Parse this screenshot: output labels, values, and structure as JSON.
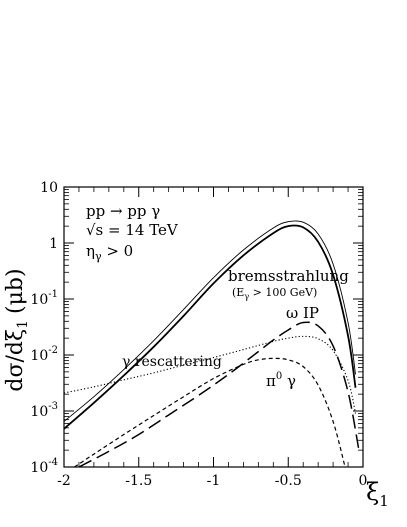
{
  "chart_data": {
    "type": "line",
    "xlabel": "ξ",
    "xlabel_sub": "1",
    "ylabel": "dσ/dξ",
    "ylabel_sub": "1",
    "ylabel_unit": "(μb)",
    "xlim": [
      -2,
      0
    ],
    "ylim": [
      0.0001,
      10
    ],
    "yscale": "log",
    "grid": false,
    "x_ticks": [
      {
        "value": -2,
        "label": "-2"
      },
      {
        "value": -1.5,
        "label": "-1.5"
      },
      {
        "value": -1,
        "label": "-1"
      },
      {
        "value": -0.5,
        "label": "-0.5"
      },
      {
        "value": 0,
        "label": "0"
      }
    ],
    "y_ticks": [
      {
        "value": 0.0001,
        "base": "10",
        "exp": "-4"
      },
      {
        "value": 0.001,
        "base": "10",
        "exp": "-3"
      },
      {
        "value": 0.01,
        "base": "10",
        "exp": "-2"
      },
      {
        "value": 0.1,
        "base": "10",
        "exp": "-1"
      },
      {
        "value": 1,
        "base": "1",
        "exp": ""
      },
      {
        "value": 10,
        "base": "10",
        "exp": ""
      }
    ],
    "process_text": {
      "line1": "pp → pp γ",
      "line2": "√s = 14 TeV",
      "line3_main": "η",
      "line3_sub": "γ",
      "line3_rest": " > 0"
    },
    "series": [
      {
        "style": "solid-thin",
        "x": [
          -2.0,
          -1.8,
          -1.6,
          -1.4,
          -1.2,
          -1.0,
          -0.8,
          -0.6,
          -0.5,
          -0.4,
          -0.3,
          -0.2,
          -0.1,
          -0.05
        ],
        "y": [
          0.00065,
          0.0018,
          0.0055,
          0.018,
          0.065,
          0.24,
          0.75,
          1.85,
          2.4,
          2.35,
          1.45,
          0.42,
          0.038,
          0.0045
        ]
      },
      {
        "style": "solid-thick",
        "x": [
          -2.0,
          -1.8,
          -1.6,
          -1.4,
          -1.2,
          -1.0,
          -0.8,
          -0.6,
          -0.5,
          -0.4,
          -0.3,
          -0.2,
          -0.1,
          -0.05
        ],
        "y": [
          0.00048,
          0.0014,
          0.0043,
          0.014,
          0.05,
          0.19,
          0.6,
          1.5,
          2.0,
          1.9,
          1.05,
          0.27,
          0.022,
          0.0026
        ]
      },
      {
        "style": "dotted",
        "x": [
          -2.0,
          -1.8,
          -1.6,
          -1.4,
          -1.2,
          -1.0,
          -0.8,
          -0.6,
          -0.5,
          -0.4,
          -0.3,
          -0.2,
          -0.1,
          -0.05
        ],
        "y": [
          0.0021,
          0.0027,
          0.0036,
          0.0048,
          0.0066,
          0.009,
          0.0125,
          0.0175,
          0.02,
          0.0215,
          0.0195,
          0.012,
          0.0035,
          0.0009
        ]
      },
      {
        "style": "long-dashed",
        "x": [
          -1.9,
          -1.7,
          -1.5,
          -1.3,
          -1.1,
          -0.9,
          -0.7,
          -0.6,
          -0.5,
          -0.4,
          -0.3,
          -0.2,
          -0.1,
          -0.03
        ],
        "y": [
          0.0001,
          0.00019,
          0.00038,
          0.00085,
          0.0019,
          0.0045,
          0.0115,
          0.0185,
          0.028,
          0.038,
          0.033,
          0.0145,
          0.0022,
          0.00022
        ]
      },
      {
        "style": "short-dashed",
        "x": [
          -1.93,
          -1.8,
          -1.6,
          -1.4,
          -1.2,
          -1.0,
          -0.8,
          -0.7,
          -0.6,
          -0.5,
          -0.4,
          -0.3,
          -0.2,
          -0.12
        ],
        "y": [
          0.0001,
          0.00017,
          0.00038,
          0.00083,
          0.0018,
          0.0038,
          0.0068,
          0.0082,
          0.0087,
          0.0082,
          0.0062,
          0.0029,
          0.00065,
          0.0001
        ]
      }
    ],
    "annotations": [
      {
        "name": "bremsstrahlung",
        "text": "bremsstrahlung"
      },
      {
        "name": "egamma",
        "main": "(E",
        "sub": "γ",
        "rest": " > 100 GeV)"
      },
      {
        "name": "omega",
        "text": "ω IP"
      },
      {
        "name": "rescatter",
        "text": "γ rescattering"
      },
      {
        "name": "pi0",
        "main": "π",
        "sup": "0",
        "rest": " γ"
      }
    ]
  }
}
